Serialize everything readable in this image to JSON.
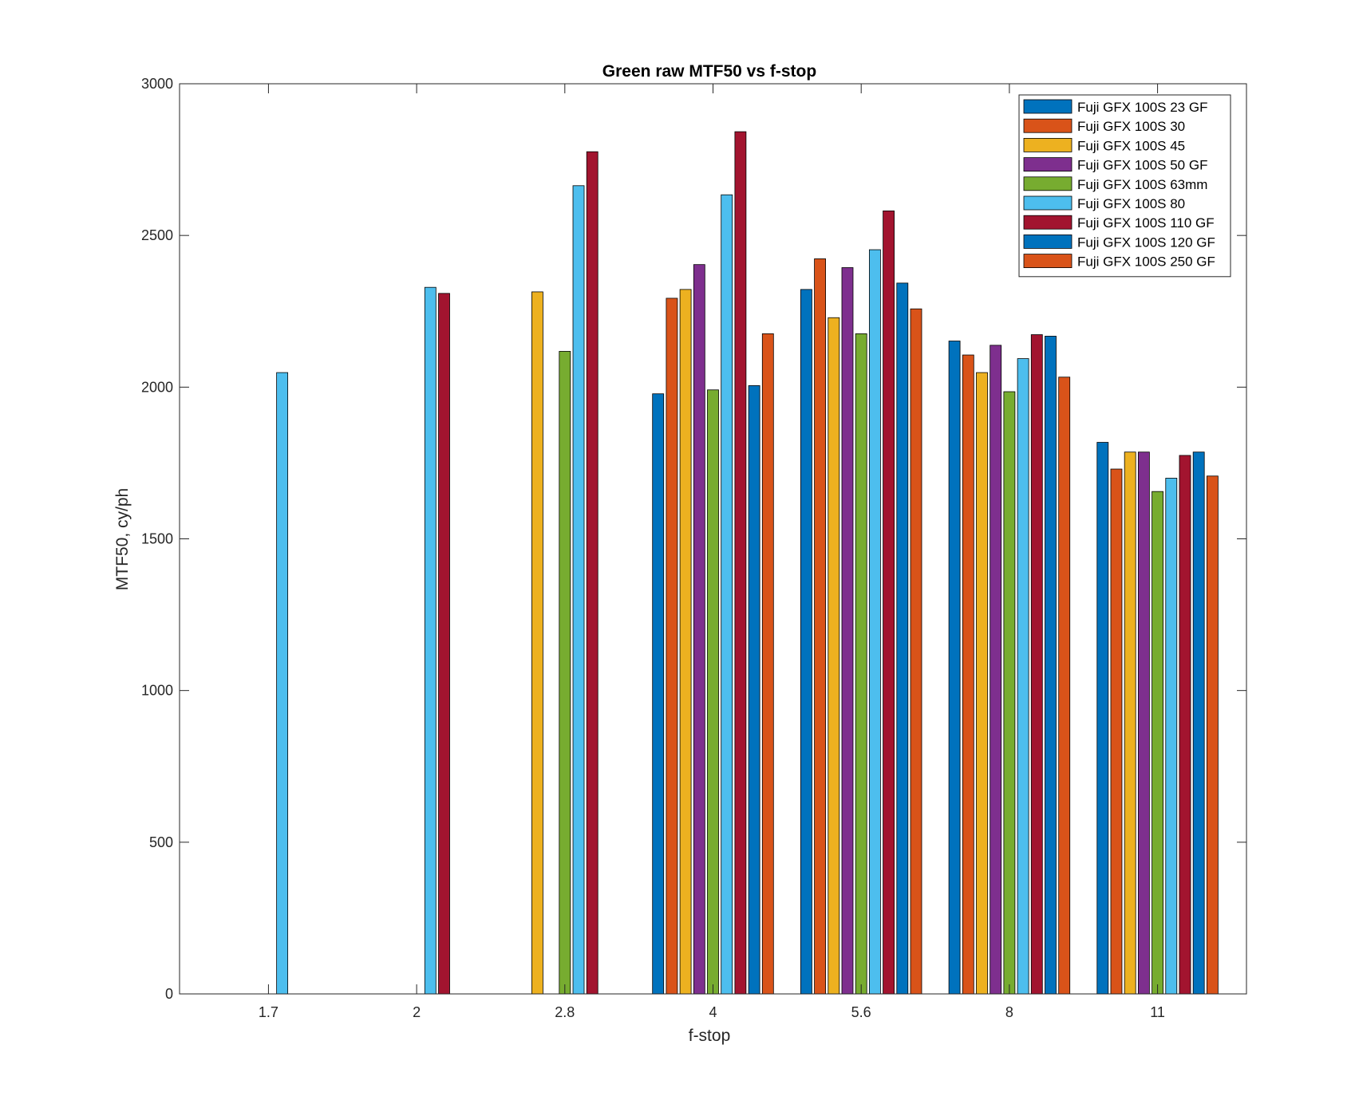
{
  "chart_data": {
    "type": "bar",
    "title": "Green raw MTF50 vs f-stop",
    "xlabel": "f-stop",
    "ylabel": "MTF50, cy/ph",
    "ylim": [
      0,
      3000
    ],
    "yticks": [
      0,
      500,
      1000,
      1500,
      2000,
      2500,
      3000
    ],
    "categories": [
      "1.7",
      "2",
      "2.8",
      "4",
      "5.6",
      "8",
      "11"
    ],
    "legend_position": "top-right",
    "grid": false,
    "series": [
      {
        "name": "Fuji GFX 100S 23  GF",
        "color": "#0072BD",
        "values": [
          null,
          null,
          null,
          1978,
          2322,
          2152,
          1818
        ]
      },
      {
        "name": "Fuji GFX 100S 30",
        "color": "#D95319",
        "values": [
          null,
          null,
          null,
          2293,
          2423,
          2106,
          1730
        ]
      },
      {
        "name": "Fuji GFX 100S 45",
        "color": "#EDB120",
        "values": [
          null,
          null,
          2314,
          2322,
          2229,
          2048,
          1786
        ]
      },
      {
        "name": "Fuji GFX 100S 50 GF",
        "color": "#7E2F8E",
        "values": [
          null,
          null,
          null,
          2404,
          2394,
          2138,
          1786
        ]
      },
      {
        "name": "Fuji GFX 100S 63mm",
        "color": "#77AC30",
        "values": [
          null,
          null,
          2118,
          1991,
          2176,
          1985,
          1656
        ]
      },
      {
        "name": "Fuji GFX 100S 80",
        "color": "#4DBEEE",
        "values": [
          2048,
          2329,
          2664,
          2634,
          2453,
          2094,
          1700
        ]
      },
      {
        "name": "Fuji GFX 100S 110 GF",
        "color": "#A2142F",
        "values": [
          null,
          2309,
          2776,
          2842,
          2581,
          2173,
          1775
        ]
      },
      {
        "name": "Fuji GFX 100S 120 GF",
        "color": "#0072BD",
        "values": [
          null,
          null,
          null,
          2005,
          2343,
          2168,
          1786
        ]
      },
      {
        "name": "Fuji GFX 100S 250 GF",
        "color": "#D95319",
        "values": [
          null,
          null,
          null,
          2176,
          2258,
          2033,
          1707
        ]
      }
    ]
  }
}
